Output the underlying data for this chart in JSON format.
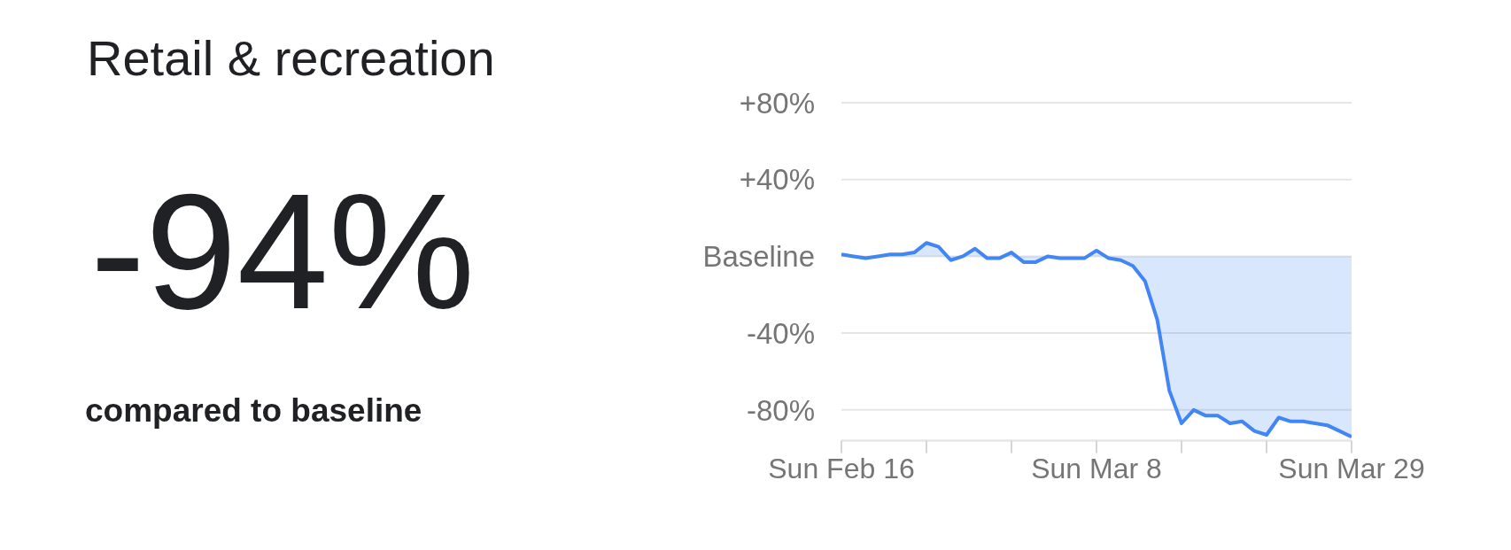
{
  "chart_data": {
    "type": "area",
    "title": "Retail & recreation",
    "annotations": [
      "-94%",
      "compared to baseline"
    ],
    "x": [
      "--02-16",
      "--02-17",
      "--02-18",
      "--02-19",
      "--02-20",
      "--02-21",
      "--02-22",
      "--02-23",
      "--02-24",
      "--02-25",
      "--02-26",
      "--02-27",
      "--02-28",
      "--02-29",
      "--03-01",
      "--03-02",
      "--03-03",
      "--03-04",
      "--03-05",
      "--03-06",
      "--03-07",
      "--03-08",
      "--03-09",
      "--03-10",
      "--03-11",
      "--03-12",
      "--03-13",
      "--03-14",
      "--03-15",
      "--03-16",
      "--03-17",
      "--03-18",
      "--03-19",
      "--03-20",
      "--03-21",
      "--03-22",
      "--03-23",
      "--03-24",
      "--03-25",
      "--03-26",
      "--03-27",
      "--03-28",
      "--03-29"
    ],
    "values": [
      1,
      0,
      -1,
      0,
      1,
      1,
      2,
      7,
      5,
      -2,
      0,
      4,
      -1,
      -1,
      2,
      -3,
      -3,
      0,
      -1,
      -1,
      -1,
      3,
      -1,
      -2,
      -5,
      -13,
      -33,
      -70,
      -87,
      -80,
      -83,
      -83,
      -87,
      -86,
      -91,
      -93,
      -84,
      -86,
      -86,
      -87,
      -88,
      -91,
      -94
    ],
    "color": "#4285f4",
    "xlim": [
      "--02-16",
      "--03-29"
    ],
    "xticks": [
      {
        "value": "--02-16",
        "label": "Sun Feb 16"
      },
      {
        "value": "--02-23",
        "label": null
      },
      {
        "value": "--03-01",
        "label": null
      },
      {
        "value": "--03-08",
        "label": "Sun Mar 8"
      },
      {
        "value": "--03-15",
        "label": null
      },
      {
        "value": "--03-22",
        "label": null
      },
      {
        "value": "--03-29",
        "label": "Sun Mar 29"
      }
    ],
    "ylim": [
      -96,
      80
    ],
    "yticks": [
      {
        "value": 80,
        "label": "+80%"
      },
      {
        "value": 40,
        "label": "+40%"
      },
      {
        "value": 0,
        "label": "Baseline"
      },
      {
        "value": -40,
        "label": "-40%"
      },
      {
        "value": -80,
        "label": "-80%"
      }
    ],
    "grid": "y"
  }
}
